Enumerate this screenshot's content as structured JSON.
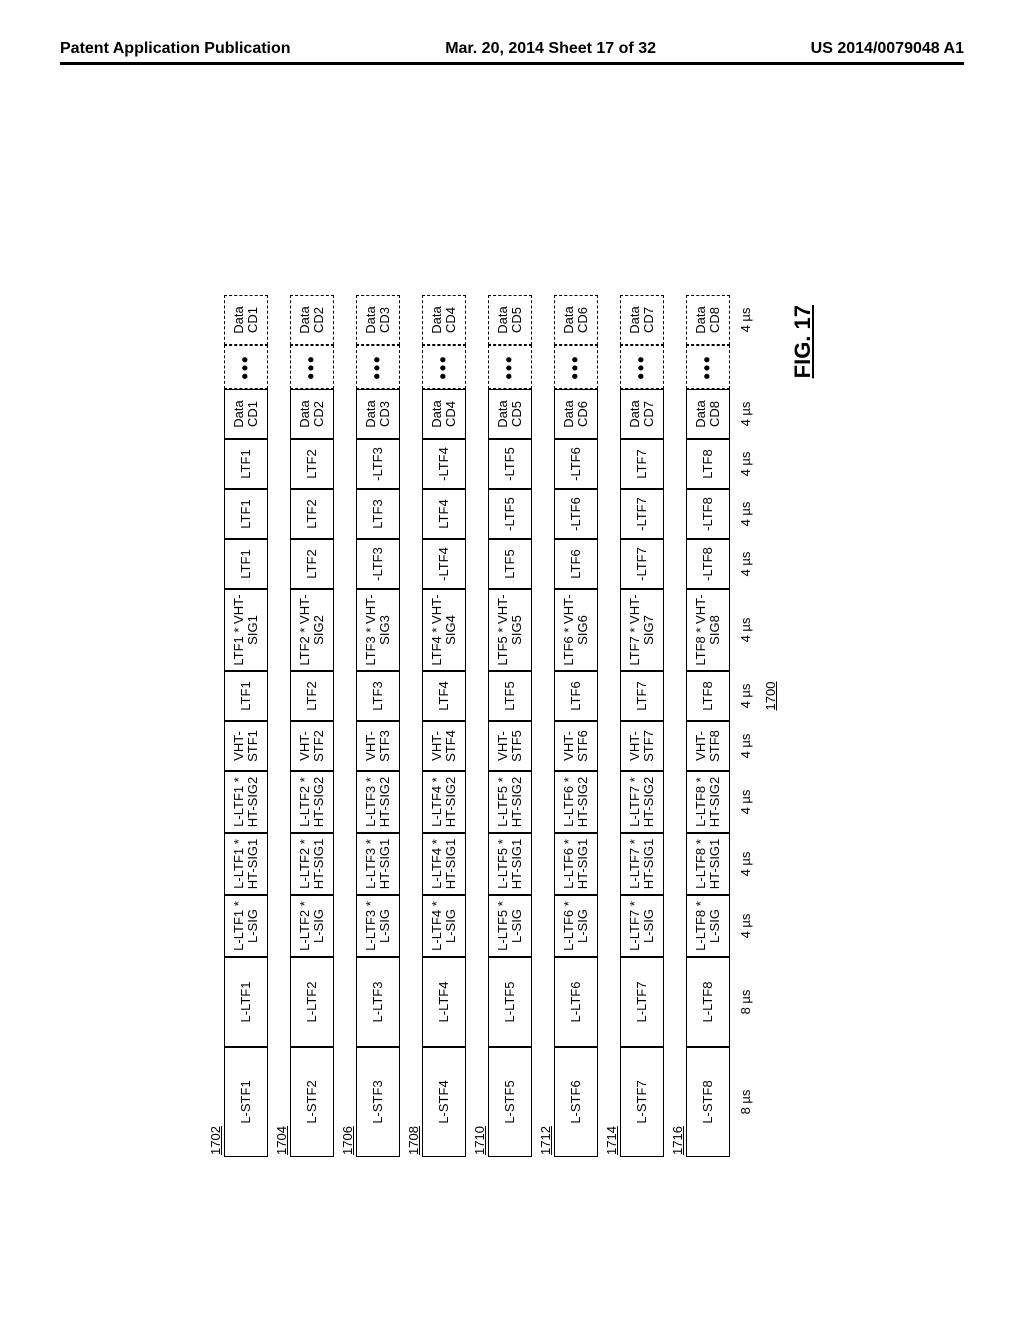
{
  "header": {
    "left": "Patent Application Publication",
    "center": "Mar. 20, 2014  Sheet 17 of 32",
    "right": "US 2014/0079048 A1"
  },
  "figure": {
    "label_prefix": "FIG.",
    "label_num": "17",
    "ref_number": "1700",
    "streams": [
      {
        "ref": "1702",
        "cells": [
          "L-STF1",
          "L-LTF1",
          "L-LTF1 *\nL-SIG",
          "L-LTF1 *\nHT-SIG1",
          "L-LTF1 *\nHT-SIG2",
          "VHT-\nSTF1",
          "LTF1",
          "LTF1 * VHT-\nSIG1",
          "LTF1",
          "LTF1",
          "LTF1",
          "Data\nCD1",
          "•••",
          "Data\nCD1"
        ]
      },
      {
        "ref": "1704",
        "cells": [
          "L-STF2",
          "L-LTF2",
          "L-LTF2 *\nL-SIG",
          "L-LTF2 *\nHT-SIG1",
          "L-LTF2 *\nHT-SIG2",
          "VHT-\nSTF2",
          "LTF2",
          "LTF2 * VHT-\nSIG2",
          "LTF2",
          "LTF2",
          "LTF2",
          "Data\nCD2",
          "•••",
          "Data\nCD2"
        ]
      },
      {
        "ref": "1706",
        "cells": [
          "L-STF3",
          "L-LTF3",
          "L-LTF3 *\nL-SIG",
          "L-LTF3 *\nHT-SIG1",
          "L-LTF3 *\nHT-SIG2",
          "VHT-\nSTF3",
          "LTF3",
          "LTF3 * VHT-\nSIG3",
          "-LTF3",
          "LTF3",
          "-LTF3",
          "Data\nCD3",
          "•••",
          "Data\nCD3"
        ]
      },
      {
        "ref": "1708",
        "cells": [
          "L-STF4",
          "L-LTF4",
          "L-LTF4 *\nL-SIG",
          "L-LTF4 *\nHT-SIG1",
          "L-LTF4 *\nHT-SIG2",
          "VHT-\nSTF4",
          "LTF4",
          "LTF4 * VHT-\nSIG4",
          "-LTF4",
          "LTF4",
          "-LTF4",
          "Data\nCD4",
          "•••",
          "Data\nCD4"
        ]
      },
      {
        "ref": "1710",
        "cells": [
          "L-STF5",
          "L-LTF5",
          "L-LTF5 *\nL-SIG",
          "L-LTF5 *\nHT-SIG1",
          "L-LTF5 *\nHT-SIG2",
          "VHT-\nSTF5",
          "LTF5",
          "LTF5 * VHT-\nSIG5",
          "LTF5",
          "-LTF5",
          "-LTF5",
          "Data\nCD5",
          "•••",
          "Data\nCD5"
        ]
      },
      {
        "ref": "1712",
        "cells": [
          "L-STF6",
          "L-LTF6",
          "L-LTF6 *\nL-SIG",
          "L-LTF6 *\nHT-SIG1",
          "L-LTF6 *\nHT-SIG2",
          "VHT-\nSTF6",
          "LTF6",
          "LTF6 * VHT-\nSIG6",
          "LTF6",
          "-LTF6",
          "-LTF6",
          "Data\nCD6",
          "•••",
          "Data\nCD6"
        ]
      },
      {
        "ref": "1714",
        "cells": [
          "L-STF7",
          "L-LTF7",
          "L-LTF7 *\nL-SIG",
          "L-LTF7 *\nHT-SIG1",
          "L-LTF7 *\nHT-SIG2",
          "VHT-\nSTF7",
          "LTF7",
          "LTF7 * VHT-\nSIG7",
          "-LTF7",
          "-LTF7",
          "LTF7",
          "Data\nCD7",
          "•••",
          "Data\nCD7"
        ]
      },
      {
        "ref": "1716",
        "cells": [
          "L-STF8",
          "L-LTF8",
          "L-LTF8 *\nL-SIG",
          "L-LTF8 *\nHT-SIG1",
          "L-LTF8 *\nHT-SIG2",
          "VHT-\nSTF8",
          "LTF8",
          "LTF8 * VHT-\nSIG8",
          "-LTF8",
          "-LTF8",
          "LTF8",
          "Data\nCD8",
          "•••",
          "Data\nCD8"
        ]
      }
    ],
    "col_widths_class": [
      "w-lstf",
      "w-lltf",
      "w-lsig",
      "w-htsig1",
      "w-htsig2",
      "w-vhtstf",
      "w-ltfa",
      "w-vhtsig",
      "w-ltfb",
      "w-ltfc",
      "w-ltfd",
      "w-data1",
      "w-dots",
      "w-data2"
    ],
    "dashed_cols": [
      12,
      13
    ],
    "timing": [
      "8 µs",
      "8 µs",
      "4 µs",
      "4 µs",
      "4 µs",
      "4 µs",
      "4 µs",
      "4 µs",
      "4 µs",
      "4 µs",
      "4 µs",
      "4 µs",
      "",
      "4 µs"
    ]
  }
}
